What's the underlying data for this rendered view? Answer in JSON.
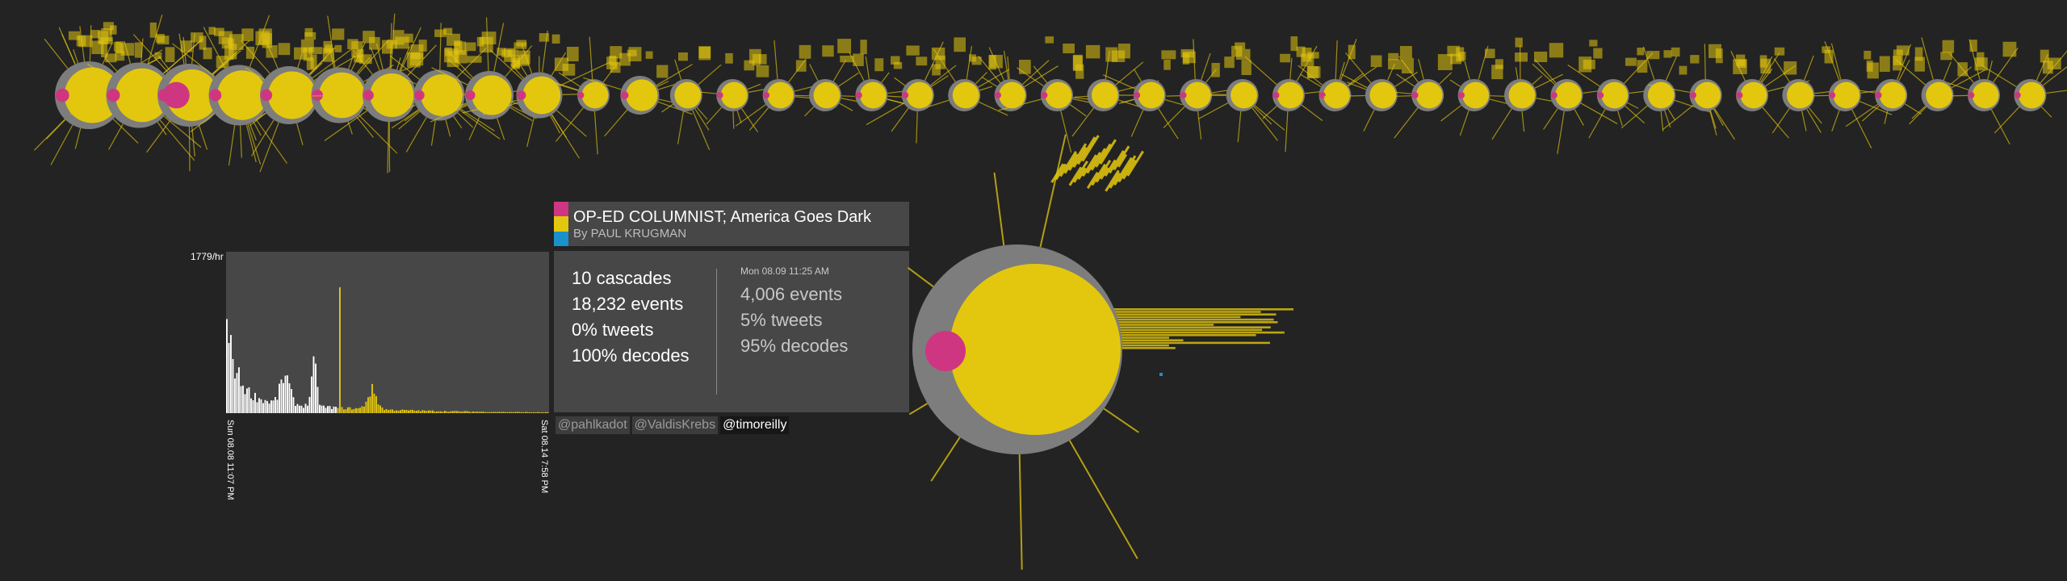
{
  "colors": {
    "background": "#232323",
    "yellow": "#e3c70e",
    "magenta": "#cf3681",
    "blue": "#1b91c9",
    "grey_disk": "#7d7d7d",
    "panel": "#474747"
  },
  "timeline": {
    "count": 42
  },
  "histogram": {
    "ymax_label": "1779/hr",
    "x_start_label": "Sun 08.08 11:07 PM",
    "x_end_label": "Sat 08.14 7:58 PM",
    "highlight_position": 0.35,
    "highlight_start": 0.34
  },
  "article": {
    "title": "OP-ED COLUMNIST; America Goes Dark",
    "byline": "By PAUL KRUGMAN",
    "swatches": [
      "#cf3681",
      "#e3c70e",
      "#1b91c9"
    ]
  },
  "stats": {
    "total": {
      "cascades": "10 cascades",
      "events": "18,232 events",
      "tweets": "0% tweets",
      "decodes": "100% decodes"
    },
    "selected": {
      "date": "Mon 08.09 11:25 AM",
      "events": "4,006 events",
      "tweets": "5% tweets",
      "decodes": "95% decodes"
    }
  },
  "users": [
    {
      "name": "@pahlkadot",
      "active": false
    },
    {
      "name": "@ValdisKrebs",
      "active": false
    },
    {
      "name": "@timoreilly",
      "active": true
    }
  ]
}
